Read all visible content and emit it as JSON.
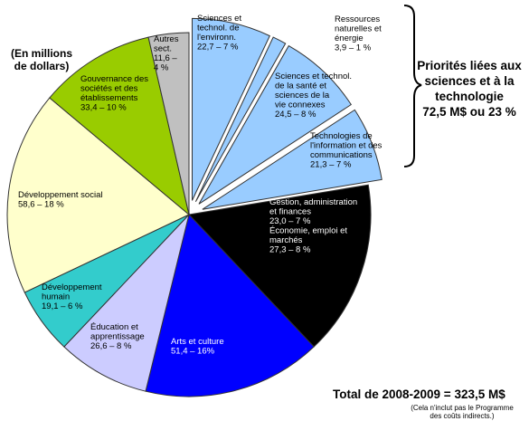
{
  "notes": {
    "unit": "(En millions de dollars)",
    "priority_line1": "Priorités liées aux",
    "priority_line2": "sciences et à la",
    "priority_line3": "technologie",
    "priority_line4": "72,5 M$ ou 23 %",
    "total": "Total de 2008-2009 = 323,5 M$",
    "footnote_line1": "(Cela n'inclut pas le Programme",
    "footnote_line2": "des coûts indirects.)"
  },
  "chart_data": {
    "type": "pie",
    "unit": "(En millions de dollars)",
    "total": 323.5,
    "slices": [
      {
        "label": "Sciences et technol. de l'environn.",
        "value": 22.7,
        "percent": 7,
        "color": "#99ccff",
        "exploded": true,
        "text_lines": [
          "Sciences et",
          "technol. de",
          "l'environn.",
          "22,7 – 7 %"
        ]
      },
      {
        "label": "Ressources naturelles et énergie",
        "value": 3.9,
        "percent": 1,
        "color": "#99ccff",
        "exploded": true,
        "text_lines": [
          "Ressources",
          "naturelles et",
          "énergie",
          "3,9 – 1 %"
        ]
      },
      {
        "label": "Sciences et technol. de la santé et sciences de la vie connexes",
        "value": 24.5,
        "percent": 8,
        "color": "#99ccff",
        "exploded": true,
        "text_lines": [
          "Sciences et technol.",
          "de la santé et",
          "sciences de la",
          "vie connexes",
          "24,5 – 8 %"
        ]
      },
      {
        "label": "Technologies de l'information et des communications",
        "value": 21.3,
        "percent": 7,
        "color": "#99ccff",
        "exploded": true,
        "text_lines": [
          "Technologies de",
          "l'information et des",
          "communications",
          "21,3 – 7 %"
        ]
      },
      {
        "label": "Gestion, administration et finances / Économie, emploi et marchés",
        "value": 50.3,
        "percent": 15,
        "color": "#000000",
        "exploded": false,
        "text_lines": [
          "Gestion, administration",
          "et finances",
          "23,0 – 7 %",
          "",
          "Économie, emploi et",
          "marchés",
          "27,3 – 8 %"
        ]
      },
      {
        "label": "Arts et culture",
        "value": 51.4,
        "percent": 16,
        "color": "#0000ff",
        "exploded": false,
        "text_lines": [
          "Arts et culture",
          "51,4 – 16%"
        ]
      },
      {
        "label": "Éducation et apprentissage",
        "value": 26.6,
        "percent": 8,
        "color": "#ccccff",
        "exploded": false,
        "text_lines": [
          "Éducation et",
          "apprentissage",
          "26,6 – 8 %"
        ]
      },
      {
        "label": "Développement humain",
        "value": 19.1,
        "percent": 6,
        "color": "#33cccc",
        "exploded": false,
        "text_lines": [
          "Développement",
          "humain",
          "19,1 – 6 %"
        ]
      },
      {
        "label": "Développement social",
        "value": 58.6,
        "percent": 18,
        "color": "#ffffcc",
        "exploded": false,
        "text_lines": [
          "Développement social",
          "58,6 – 18 %"
        ]
      },
      {
        "label": "Gouvernance des sociétés et des établissements",
        "value": 33.4,
        "percent": 10,
        "color": "#99cc00",
        "exploded": false,
        "text_lines": [
          "Gouvernance des",
          "sociétés et des",
          "établissements",
          "33,4 – 10 %"
        ]
      },
      {
        "label": "Autres sect.",
        "value": 11.6,
        "percent": 4,
        "color": "#c0c0c0",
        "exploded": false,
        "text_lines": [
          "Autres",
          "sect.",
          "11,6 –",
          "4 %"
        ]
      }
    ],
    "bracket_group": "Priorités liées aux sciences et à la technologie",
    "bracket_total": "72,5 M$ ou 23 %"
  }
}
